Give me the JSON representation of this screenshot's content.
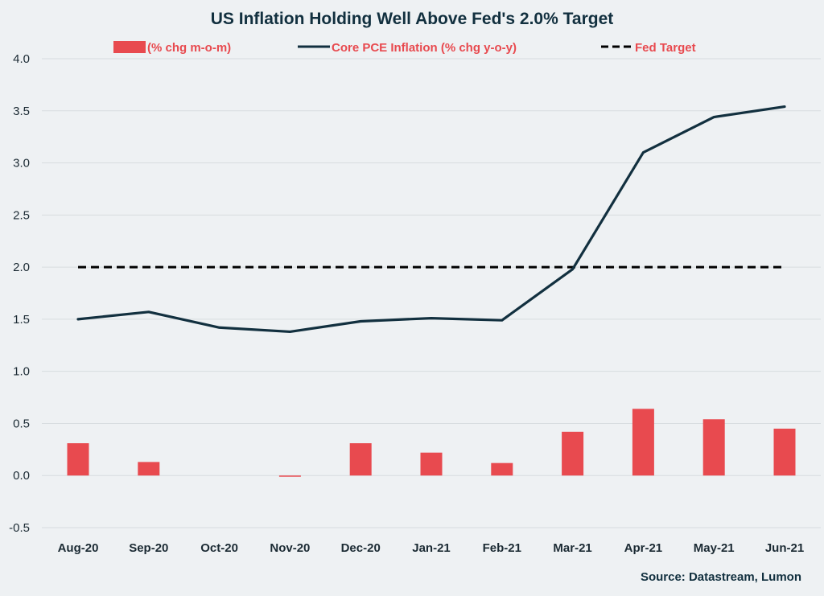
{
  "chart_data": {
    "type": "bar",
    "title": "US Inflation Holding Well Above Fed's 2.0% Target",
    "categories": [
      "Aug-20",
      "Sep-20",
      "Oct-20",
      "Nov-20",
      "Dec-20",
      "Jan-21",
      "Feb-21",
      "Mar-21",
      "Apr-21",
      "May-21",
      "Jun-21"
    ],
    "series": [
      {
        "name": "(% chg m-o-m)",
        "kind": "bar",
        "color": "#e84a4f",
        "values": [
          0.31,
          0.13,
          0.0,
          -0.01,
          0.31,
          0.22,
          0.12,
          0.42,
          0.64,
          0.54,
          0.45
        ]
      },
      {
        "name": "Core PCE Inflation (% chg y-o-y)",
        "kind": "line",
        "color": "#12303f",
        "values": [
          1.5,
          1.57,
          1.42,
          1.38,
          1.48,
          1.51,
          1.49,
          1.98,
          3.1,
          3.44,
          3.54
        ]
      },
      {
        "name": "Fed Target",
        "kind": "dashed-line",
        "color": "#000000",
        "values": [
          2.0,
          2.0,
          2.0,
          2.0,
          2.0,
          2.0,
          2.0,
          2.0,
          2.0,
          2.0,
          2.0
        ]
      }
    ],
    "yticks": [
      "-0.5",
      "0.0",
      "0.5",
      "1.0",
      "1.5",
      "2.0",
      "2.5",
      "3.0",
      "3.5",
      "4.0"
    ],
    "ylim": [
      -0.5,
      4.0
    ],
    "xlabel": "",
    "ylabel": "",
    "grid": true,
    "legend_position": "top-center",
    "source": "Source: Datastream, Lumon",
    "gridline_color": "#d7dcdf"
  }
}
